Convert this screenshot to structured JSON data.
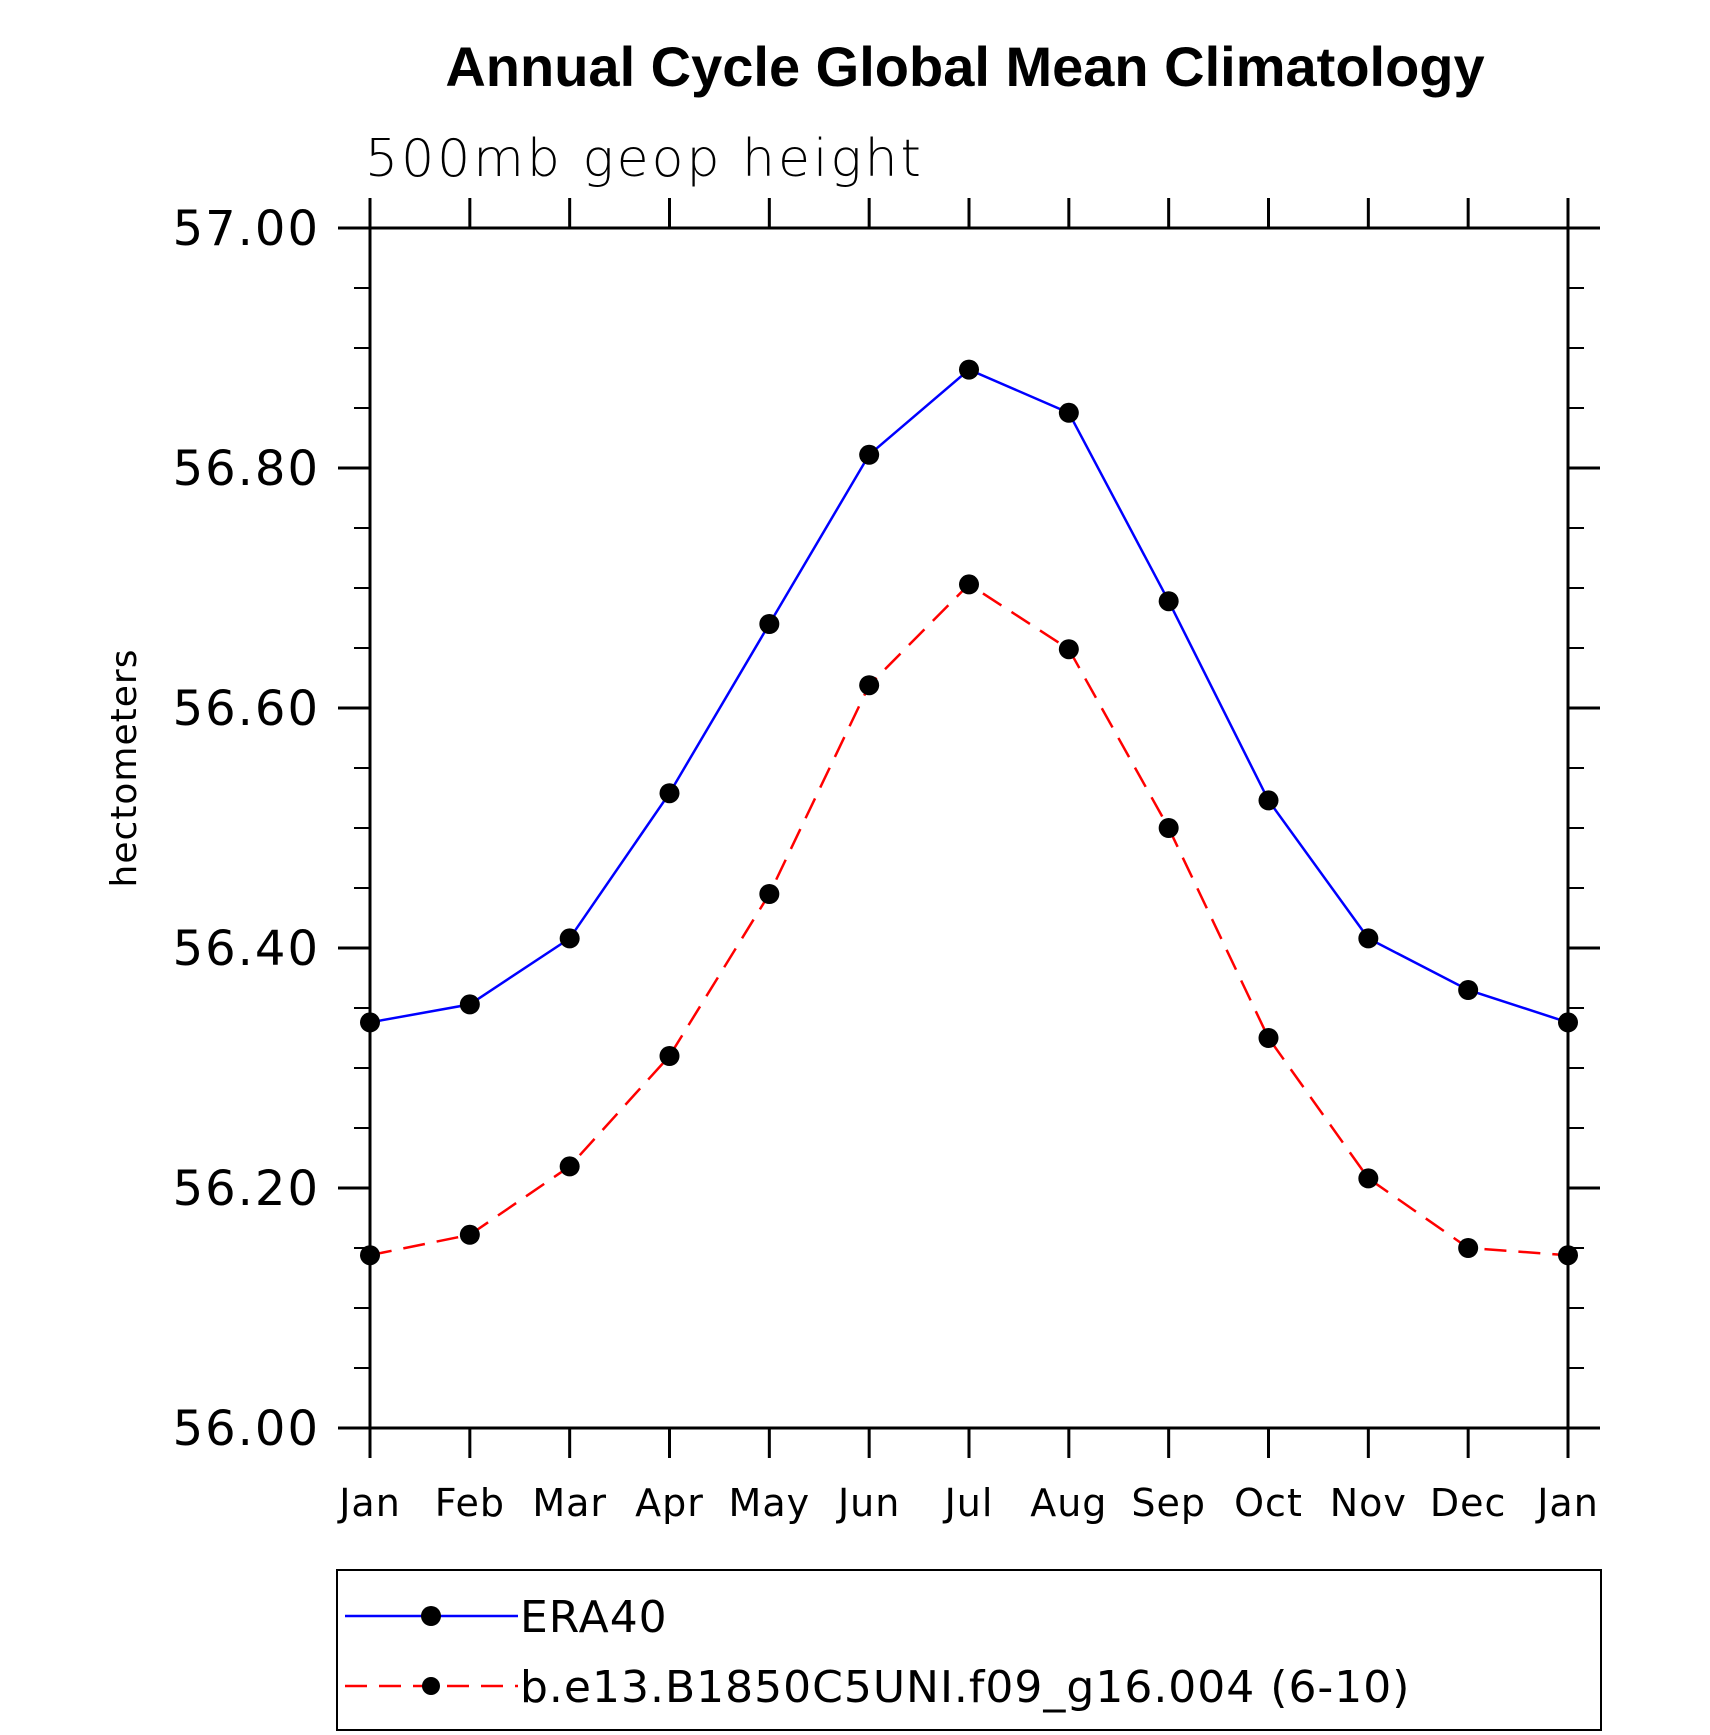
{
  "chart_data": {
    "type": "line",
    "title": "Annual Cycle Global Mean Climatology",
    "subtitle": "500mb geop height",
    "xlabel": "",
    "ylabel": "hectometers",
    "categories": [
      "Jan",
      "Feb",
      "Mar",
      "Apr",
      "May",
      "Jun",
      "Jul",
      "Aug",
      "Sep",
      "Oct",
      "Nov",
      "Dec",
      "Jan"
    ],
    "ylim": [
      56.0,
      57.0
    ],
    "yticks": [
      "56.00",
      "56.20",
      "56.40",
      "56.60",
      "56.80",
      "57.00"
    ],
    "series": [
      {
        "name": "ERA40",
        "color": "#0000ff",
        "dash": "solid",
        "marker": "filled-circle",
        "values": [
          56.338,
          56.353,
          56.408,
          56.529,
          56.67,
          56.811,
          56.882,
          56.846,
          56.689,
          56.523,
          56.408,
          56.365,
          56.338
        ]
      },
      {
        "name": "b.e13.B1850C5UNI.f09_g16.004 (6-10)",
        "color": "#ff0000",
        "dash": "dashed",
        "marker": "filled-circle",
        "values": [
          56.144,
          56.161,
          56.218,
          56.31,
          56.445,
          56.619,
          56.703,
          56.649,
          56.5,
          56.325,
          56.208,
          56.15,
          56.144
        ]
      }
    ],
    "legend_position": "bottom"
  }
}
